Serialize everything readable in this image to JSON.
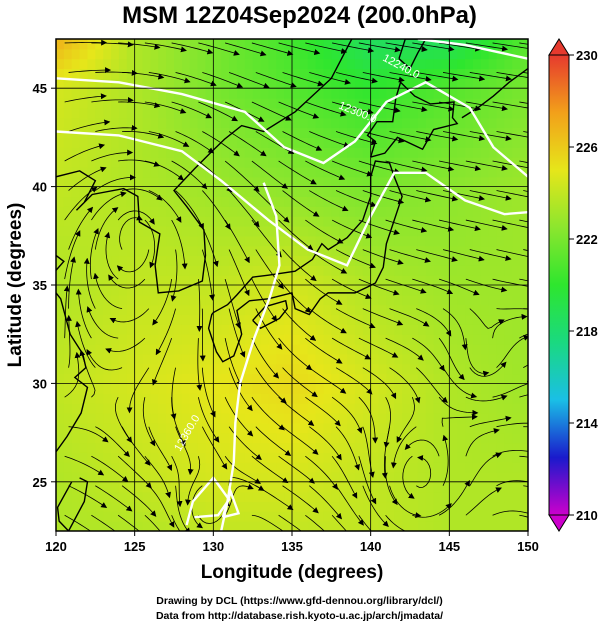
{
  "title": "MSM 12Z04Sep2024 (200.0hPa)",
  "axes": {
    "x_label": "Longitude (degrees)",
    "y_label": "Latitude  (degrees)",
    "x_ticks": [
      "120",
      "125",
      "130",
      "135",
      "140",
      "145",
      "150"
    ],
    "y_ticks": [
      "25",
      "30",
      "35",
      "40",
      "45"
    ]
  },
  "colorbar": {
    "ticks": [
      "230",
      "226",
      "222",
      "218",
      "214",
      "210"
    ],
    "colors": [
      "#cc00cc",
      "#1a1acc",
      "#1abfe6",
      "#1ad980",
      "#2ee62e",
      "#8ce62e",
      "#e6e61a",
      "#f2a01a",
      "#e63a2e"
    ]
  },
  "contour_labels": [
    "12240.0",
    "12300.0",
    "12360.0"
  ],
  "credits": [
    "Drawing by DCL (https://www.gfd-dennou.org/library/dcl/)",
    "Data from http://database.rish.kyoto-u.ac.jp/arch/jmadata/"
  ],
  "chart_data": {
    "type": "heatmap",
    "title": "MSM 12Z04Sep2024 (200.0hPa)",
    "xlabel": "Longitude (degrees)",
    "ylabel": "Latitude  (degrees)",
    "xlim": [
      120,
      150
    ],
    "ylim": [
      22.5,
      47.5
    ],
    "colorbar_range": [
      210,
      230
    ],
    "colorbar_tick_values": [
      230,
      226,
      222,
      218,
      214,
      210
    ],
    "field_grid": {
      "lon": [
        120,
        125,
        130,
        135,
        140,
        145,
        150
      ],
      "lat": [
        47.5,
        45,
        40,
        35,
        30,
        25,
        22.5
      ],
      "values": [
        [
          227,
          223.5,
          222,
          220.5,
          218.5,
          218.5,
          221
        ],
        [
          224.5,
          223.5,
          222,
          221,
          220,
          221,
          222
        ],
        [
          224,
          223.5,
          223,
          222.5,
          222,
          222.5,
          223
        ],
        [
          223.5,
          224,
          224,
          224.5,
          223.5,
          223,
          223
        ],
        [
          224,
          224.5,
          225,
          225.5,
          224.5,
          223.5,
          223
        ],
        [
          223.5,
          224,
          224.5,
          224.5,
          224,
          223.5,
          223.5
        ],
        [
          223.5,
          223.5,
          224,
          224,
          224,
          223.5,
          223.5
        ]
      ]
    },
    "grid": true
  }
}
